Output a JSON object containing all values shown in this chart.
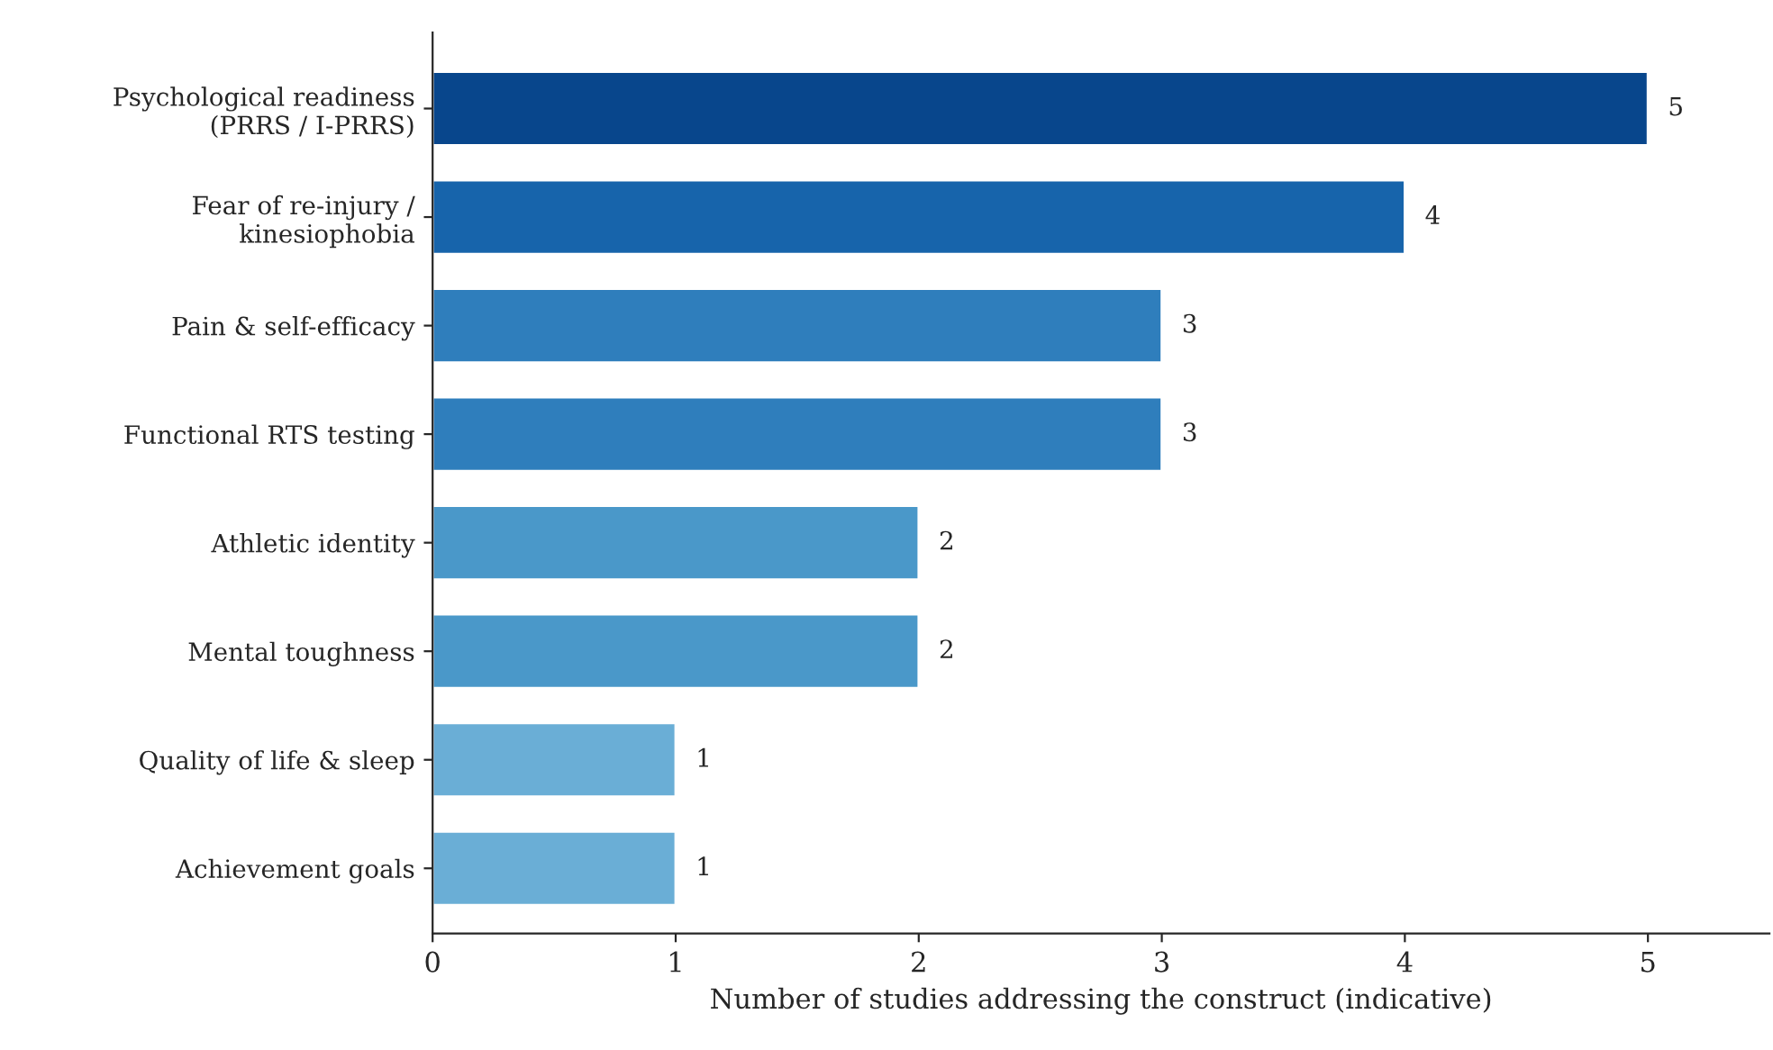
{
  "chart_data": {
    "type": "bar",
    "orientation": "horizontal",
    "xlabel": "Number of studies addressing the construct (indicative)",
    "categories": [
      "Psychological readiness\n(PRRS / I-PRRS)",
      "Fear of re-injury /\nkinesiophobia",
      "Pain & self-efficacy",
      "Functional RTS testing",
      "Athletic identity",
      "Mental toughness",
      "Quality of life & sleep",
      "Achievement goals"
    ],
    "values": [
      5,
      4,
      3,
      3,
      2,
      2,
      1,
      1
    ],
    "colors": [
      "#08468c",
      "#1764ab",
      "#2f7ebc",
      "#2f7ebc",
      "#4a98c9",
      "#4a98c9",
      "#6aaed6",
      "#6aaed6"
    ],
    "xlim": [
      0,
      5.5
    ],
    "xticks": [
      0,
      1,
      2,
      3,
      4,
      5
    ],
    "data_labels": true,
    "grid": false,
    "legend": false
  }
}
